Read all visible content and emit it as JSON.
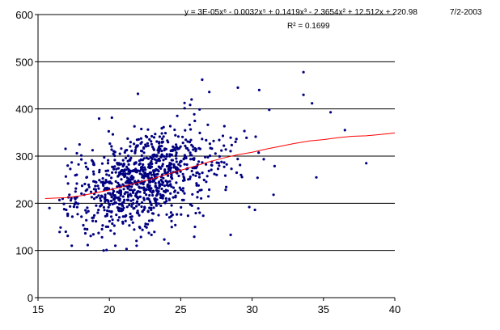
{
  "chart_data": {
    "type": "scatter",
    "date_label": "7/2-2003",
    "trendline": {
      "equation": "y = 3E-05x⁶ - 0.0032x⁵ + 0.1419x³ - 2.3654x² + 12.512x + 220.98",
      "r_squared": "R² = 0.1699",
      "points": [
        [
          15.5,
          210
        ],
        [
          17,
          212
        ],
        [
          18,
          216
        ],
        [
          19,
          222
        ],
        [
          20,
          228
        ],
        [
          21,
          236
        ],
        [
          22,
          244
        ],
        [
          23,
          252
        ],
        [
          24,
          261
        ],
        [
          25,
          270
        ],
        [
          26,
          279
        ],
        [
          27,
          288
        ],
        [
          28,
          296
        ],
        [
          29,
          303
        ],
        [
          30,
          308
        ],
        [
          31,
          315
        ],
        [
          32,
          321
        ],
        [
          33,
          327
        ],
        [
          34,
          332
        ],
        [
          35,
          335
        ],
        [
          36,
          339
        ],
        [
          37,
          342
        ],
        [
          38,
          343
        ],
        [
          39,
          346
        ],
        [
          40,
          349
        ]
      ]
    },
    "xlim": [
      15,
      40
    ],
    "ylim": [
      0,
      600
    ],
    "x_ticks": [
      15,
      20,
      25,
      30,
      35,
      40
    ],
    "y_ticks": [
      0,
      100,
      200,
      300,
      400,
      500,
      600
    ],
    "grid": "horizontal",
    "colors": {
      "points": "#000080",
      "trendline": "#ff0000",
      "grid": "#000000"
    },
    "scatter_cloud": {
      "n": 1000,
      "x_mean": 22.5,
      "x_sd": 2.6,
      "y_intercept": 0,
      "y_slope_note": "",
      "outliers": [
        [
          33.6,
          478
        ],
        [
          33.6,
          430
        ],
        [
          34.2,
          412
        ],
        [
          26.5,
          462
        ],
        [
          29,
          445
        ],
        [
          27,
          436
        ],
        [
          22,
          432
        ],
        [
          30.5,
          440
        ],
        [
          31.2,
          398
        ],
        [
          35.5,
          393
        ],
        [
          36.5,
          355
        ],
        [
          38,
          285
        ],
        [
          34.5,
          255
        ],
        [
          15.8,
          190
        ],
        [
          16.5,
          207
        ],
        [
          17.2,
          218
        ],
        [
          19.6,
          100
        ],
        [
          19.8,
          101
        ],
        [
          21.2,
          103
        ],
        [
          28.5,
          133
        ],
        [
          26,
          150
        ],
        [
          31.5,
          218
        ],
        [
          29.8,
          192
        ],
        [
          30.2,
          186
        ]
      ]
    }
  }
}
